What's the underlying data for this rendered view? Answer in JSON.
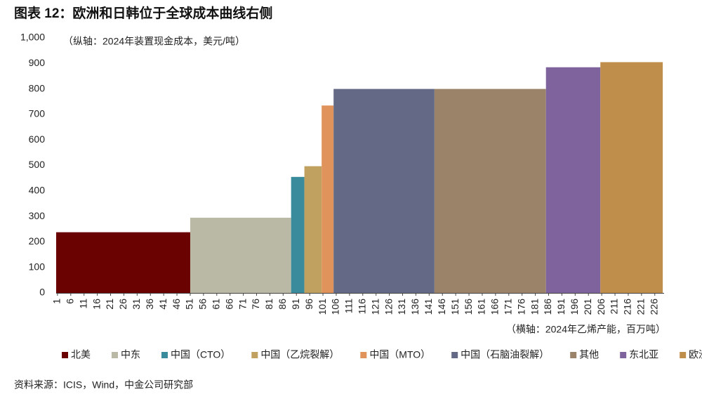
{
  "chart_data": {
    "type": "cost-curve",
    "title": "图表 12：欧洲和日韩位于全球成本曲线右侧",
    "y_label": "（纵轴：2024年装置现金成本，美元/吨）",
    "x_label": "（横轴：2024年乙烯产能，百万吨）",
    "source": "资料来源：ICIS，Wind，中金公司研究部",
    "categories": [
      "北美",
      "中东",
      "中国（CTO）",
      "中国（乙烷裂解）",
      "中国（MTO）",
      "中国（石脑油裂解）",
      "其他",
      "东北亚",
      "欧洲"
    ],
    "colors": [
      "#6b0202",
      "#b9b9a6",
      "#3a8b9b",
      "#c1a15f",
      "#e0945c",
      "#646a86",
      "#9b8369",
      "#7f639d",
      "#c08e4b"
    ],
    "bins": [
      0.5,
      51,
      89,
      94,
      100.5,
      105,
      143,
      185,
      205.5,
      229
    ],
    "values": [
      238,
      295,
      455,
      497,
      735,
      800,
      800,
      885,
      905
    ],
    "xlim": [
      0.5,
      229.5
    ],
    "xticks": [
      1,
      6,
      11,
      16,
      21,
      26,
      31,
      36,
      41,
      46,
      51,
      56,
      61,
      66,
      71,
      76,
      81,
      86,
      91,
      96,
      101,
      106,
      111,
      116,
      121,
      126,
      131,
      136,
      141,
      146,
      151,
      156,
      161,
      166,
      171,
      176,
      181,
      186,
      191,
      196,
      201,
      206,
      211,
      216,
      221,
      226
    ],
    "ylim": [
      0,
      1000
    ],
    "yticks": [
      0,
      100,
      200,
      300,
      400,
      500,
      600,
      700,
      800,
      900,
      {
        "value": 1000,
        "label": "1,000"
      }
    ]
  }
}
